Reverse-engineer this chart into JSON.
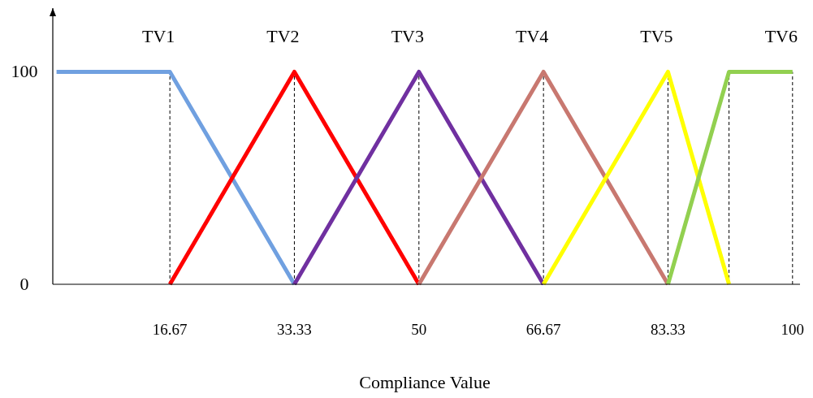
{
  "chart_data": {
    "type": "line",
    "xlabel": "Compliance Value",
    "xlim": [
      1,
      101
    ],
    "ylim": [
      0,
      130
    ],
    "xticks": [
      16.67,
      33.33,
      50,
      66.67,
      83.33,
      100
    ],
    "yticks": [
      0,
      100
    ],
    "marker": "none",
    "line_style": "solid",
    "grid": false,
    "ref_lines": [
      {
        "axis": "x",
        "value": 16.67,
        "line_style": "dashed",
        "color": "#000000"
      },
      {
        "axis": "x",
        "value": 33.33,
        "line_style": "dashed",
        "color": "#000000"
      },
      {
        "axis": "x",
        "value": 50,
        "line_style": "dashed",
        "color": "#000000"
      },
      {
        "axis": "x",
        "value": 66.67,
        "line_style": "dashed",
        "color": "#000000"
      },
      {
        "axis": "x",
        "value": 83.33,
        "line_style": "dashed",
        "color": "#000000"
      },
      {
        "axis": "x",
        "value": 91.5,
        "line_style": "dashed",
        "color": "#000000"
      },
      {
        "axis": "x",
        "value": 100,
        "line_style": "dashed",
        "color": "#000000"
      }
    ],
    "series": [
      {
        "name": "TV1",
        "color": "#70a0e0",
        "x": [
          1.5,
          16.67,
          33.33
        ],
        "values": [
          100,
          100,
          0
        ]
      },
      {
        "name": "TV2",
        "color": "#ff0000",
        "x": [
          16.67,
          33.33,
          50
        ],
        "values": [
          0,
          100,
          0
        ]
      },
      {
        "name": "TV3",
        "color": "#7030a0",
        "x": [
          33.33,
          50,
          66.67
        ],
        "values": [
          0,
          100,
          0
        ]
      },
      {
        "name": "TV4",
        "color": "#c87870",
        "x": [
          50,
          66.67,
          83.33
        ],
        "values": [
          0,
          100,
          0
        ]
      },
      {
        "name": "TV5",
        "color": "#ffff00",
        "x": [
          66.67,
          83.33,
          91.5
        ],
        "values": [
          0,
          100,
          0
        ]
      },
      {
        "name": "TV6",
        "color": "#92d050",
        "x": [
          83.33,
          91.5,
          100
        ],
        "values": [
          0,
          100,
          100
        ]
      }
    ]
  }
}
